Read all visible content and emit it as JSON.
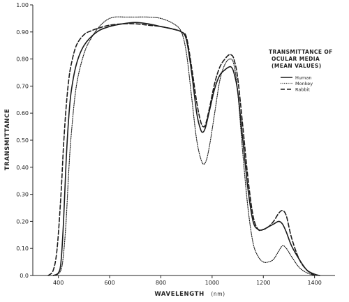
{
  "chart_data": {
    "type": "line",
    "title": "",
    "xlabel": "WAVELENGTH",
    "xlabel_unit": "(nm)",
    "ylabel": "TRANSMITTANCE",
    "xlim": [
      300,
      1480
    ],
    "ylim": [
      0,
      1.0
    ],
    "x_ticks": [
      400,
      600,
      800,
      1000,
      1200,
      1400
    ],
    "x_tick_labels": [
      "400",
      "600",
      "800",
      "1000",
      "1200",
      "1400"
    ],
    "y_ticks": [
      0.0,
      0.1,
      0.2,
      0.3,
      0.4,
      0.5,
      0.6,
      0.7,
      0.8,
      0.9,
      1.0
    ],
    "y_tick_labels": [
      "0.0",
      "0.10",
      "0.20",
      "0.30",
      "0.40",
      "0.50",
      "0.60",
      "0.70",
      "0.80",
      "0.90",
      "1.00"
    ],
    "grid": false,
    "legend": {
      "title_lines": [
        "TRANSMITTANCE OF",
        "OCULAR MEDIA",
        "(MEAN VALUES)"
      ],
      "position": "top-right"
    },
    "series": [
      {
        "name": "Human",
        "style": "solid",
        "x": [
          380,
          400,
          410,
          420,
          430,
          440,
          450,
          470,
          500,
          550,
          600,
          650,
          700,
          750,
          800,
          850,
          880,
          900,
          920,
          940,
          955,
          965,
          975,
          990,
          1010,
          1030,
          1050,
          1065,
          1075,
          1085,
          1100,
          1120,
          1140,
          1160,
          1180,
          1200,
          1220,
          1240,
          1260,
          1275,
          1290,
          1310,
          1340,
          1370,
          1400,
          1420
        ],
        "y": [
          0.0,
          0.01,
          0.05,
          0.2,
          0.42,
          0.58,
          0.68,
          0.78,
          0.85,
          0.9,
          0.92,
          0.93,
          0.935,
          0.93,
          0.92,
          0.91,
          0.9,
          0.87,
          0.75,
          0.6,
          0.54,
          0.53,
          0.55,
          0.61,
          0.69,
          0.74,
          0.76,
          0.77,
          0.77,
          0.75,
          0.68,
          0.5,
          0.32,
          0.2,
          0.17,
          0.17,
          0.18,
          0.19,
          0.2,
          0.19,
          0.16,
          0.11,
          0.06,
          0.02,
          0.005,
          0.0
        ]
      },
      {
        "name": "Monkey",
        "style": "dotted",
        "x": [
          390,
          410,
          420,
          430,
          440,
          450,
          470,
          500,
          530,
          560,
          590,
          620,
          660,
          700,
          750,
          800,
          850,
          880,
          900,
          920,
          940,
          960,
          975,
          990,
          1010,
          1030,
          1050,
          1070,
          1085,
          1100,
          1120,
          1140,
          1160,
          1180,
          1200,
          1220,
          1240,
          1260,
          1275,
          1290,
          1310,
          1340,
          1370,
          1400
        ],
        "y": [
          0.0,
          0.02,
          0.08,
          0.2,
          0.38,
          0.52,
          0.7,
          0.82,
          0.88,
          0.92,
          0.945,
          0.955,
          0.955,
          0.955,
          0.955,
          0.95,
          0.93,
          0.9,
          0.82,
          0.66,
          0.5,
          0.42,
          0.42,
          0.48,
          0.6,
          0.72,
          0.78,
          0.8,
          0.78,
          0.68,
          0.45,
          0.25,
          0.12,
          0.07,
          0.05,
          0.05,
          0.06,
          0.09,
          0.11,
          0.1,
          0.07,
          0.03,
          0.01,
          0.0
        ]
      },
      {
        "name": "Rabbit",
        "style": "dashed",
        "x": [
          360,
          380,
          395,
          410,
          420,
          430,
          440,
          450,
          470,
          500,
          530,
          560,
          600,
          650,
          700,
          750,
          800,
          850,
          880,
          900,
          920,
          940,
          955,
          965,
          975,
          990,
          1010,
          1030,
          1050,
          1065,
          1075,
          1085,
          1100,
          1120,
          1140,
          1160,
          1180,
          1200,
          1220,
          1240,
          1260,
          1275,
          1290,
          1310,
          1340,
          1370,
          1400
        ],
        "y": [
          0.0,
          0.02,
          0.1,
          0.3,
          0.48,
          0.62,
          0.72,
          0.78,
          0.85,
          0.89,
          0.905,
          0.915,
          0.925,
          0.93,
          0.93,
          0.925,
          0.92,
          0.91,
          0.9,
          0.88,
          0.77,
          0.64,
          0.57,
          0.55,
          0.56,
          0.62,
          0.71,
          0.77,
          0.8,
          0.815,
          0.815,
          0.8,
          0.73,
          0.55,
          0.36,
          0.22,
          0.17,
          0.17,
          0.18,
          0.2,
          0.23,
          0.24,
          0.22,
          0.14,
          0.06,
          0.02,
          0.0
        ]
      }
    ]
  }
}
